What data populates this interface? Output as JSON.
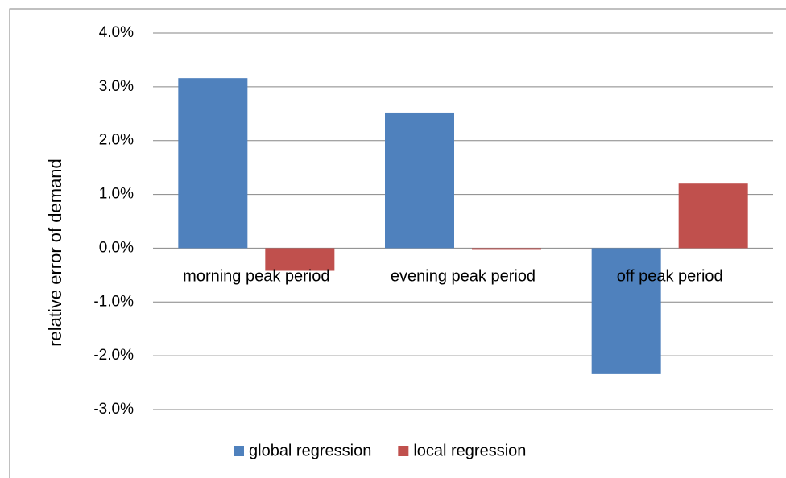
{
  "chart_data": {
    "type": "bar",
    "y_label": "relative error of demand",
    "categories": [
      "morning peak period",
      "evening peak period",
      "off peak period"
    ],
    "series": [
      {
        "name": "global regression",
        "color": "#4f81bd",
        "values": [
          3.16,
          2.52,
          -2.34
        ]
      },
      {
        "name": "local regression",
        "color": "#c0504d",
        "values": [
          -0.42,
          -0.03,
          1.2
        ]
      }
    ],
    "ylim": [
      -3,
      4
    ],
    "yticks": [
      {
        "value": -3,
        "label": "-3.0%"
      },
      {
        "value": -2,
        "label": "-2.0%"
      },
      {
        "value": -1,
        "label": "-1.0%"
      },
      {
        "value": 0,
        "label": "0.0%"
      },
      {
        "value": 1,
        "label": "1.0%"
      },
      {
        "value": 2,
        "label": "2.0%"
      },
      {
        "value": 3,
        "label": "3.0%"
      },
      {
        "value": 4,
        "label": "4.0%"
      }
    ],
    "grid": true,
    "legend": "bottom"
  }
}
